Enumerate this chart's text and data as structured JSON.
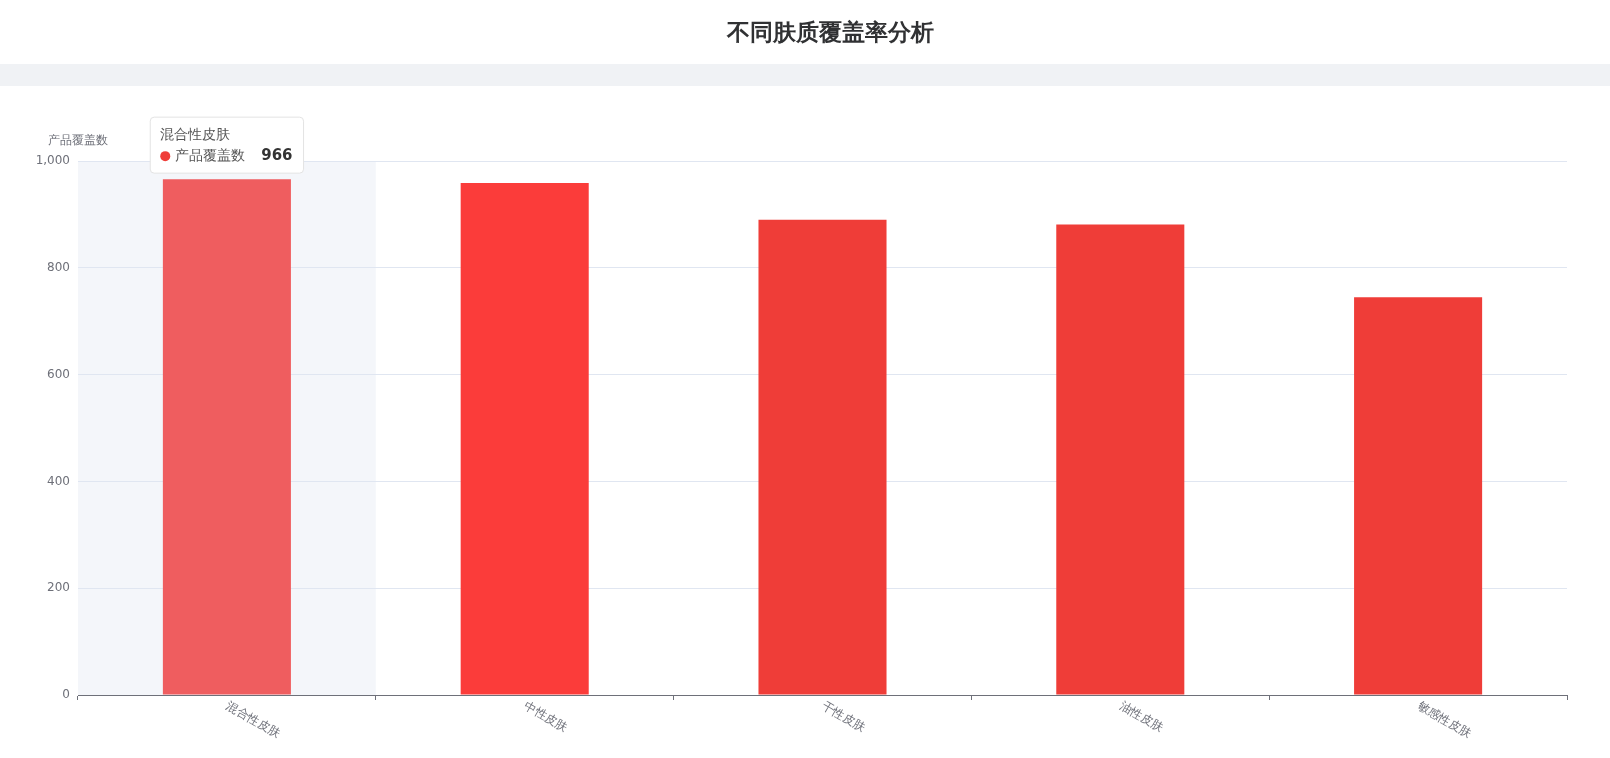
{
  "chart_data": {
    "type": "bar",
    "title": "不同肤质覆盖率分析",
    "ylabel": "产品覆盖数",
    "categories": [
      "混合性皮肤",
      "中性皮肤",
      "干性皮肤",
      "油性皮肤",
      "敏感性皮肤"
    ],
    "series": [
      {
        "name": "产品覆盖数",
        "color": "#ef3d38",
        "colors": [
          "#ef5d5f",
          "#fb3c3a",
          "#ef3d38",
          "#ef3d38",
          "#ef3d38"
        ],
        "values": [
          966,
          959,
          890,
          881,
          745
        ],
        "value_labels": [
          "966",
          null,
          null,
          null,
          null
        ]
      }
    ],
    "ylim": [
      0,
      1000
    ],
    "yticks": [
      0,
      200,
      400,
      600,
      800,
      {
        "value": 1000,
        "label": "1,000"
      }
    ],
    "grid": "y",
    "bands": [
      {
        "axis": "x",
        "from": "混合性皮肤",
        "to": "混合性皮肤",
        "color": "#f4f6fa"
      }
    ]
  }
}
